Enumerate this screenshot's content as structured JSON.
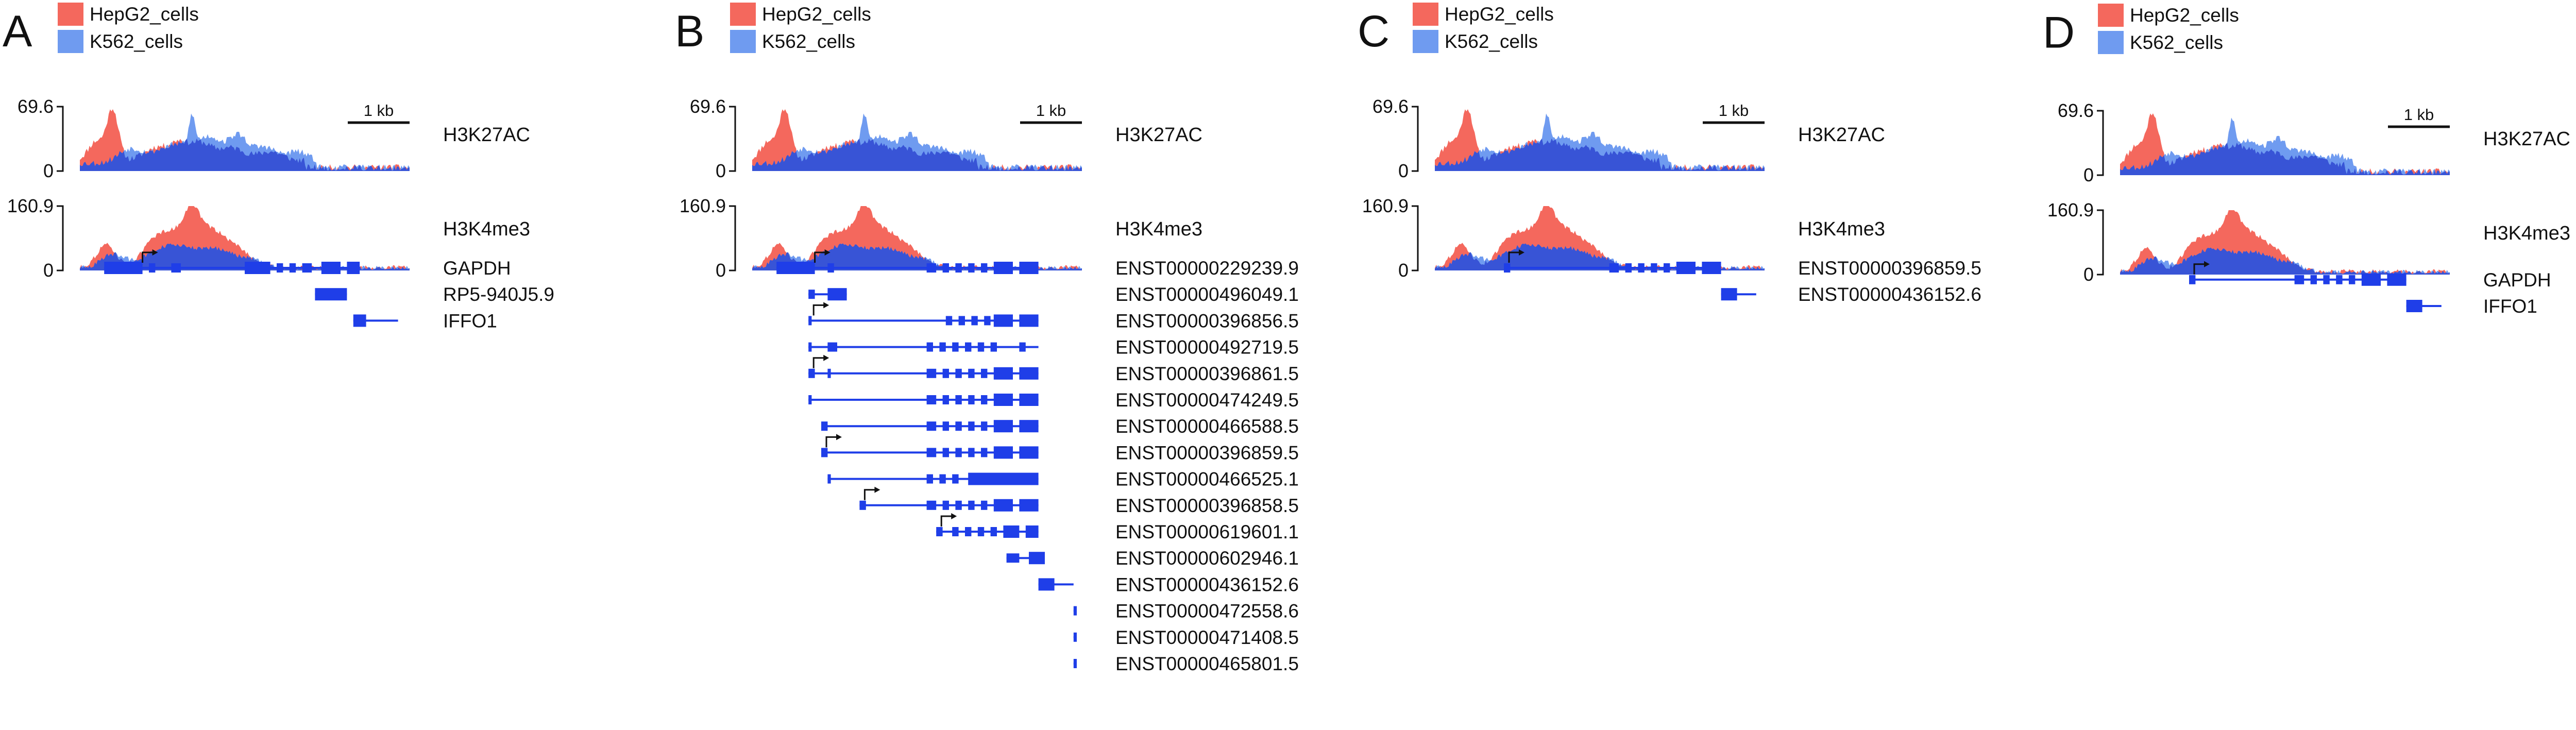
{
  "colors": {
    "hepg2": "#f4685d",
    "k562": "#6f9bf0",
    "overlap": "#3854d6",
    "gene": "#1f3ee8"
  },
  "legend": {
    "series": [
      {
        "name": "HepG2_cells",
        "color": "#f4685d"
      },
      {
        "name": "K562_cells",
        "color": "#6f9bf0"
      }
    ]
  },
  "scale_bar_label": "1 kb",
  "tracks": [
    {
      "name": "H3K27AC",
      "ymax": "69.6",
      "ymin": "0"
    },
    {
      "name": "H3K4me3",
      "ymax": "160.9",
      "ymin": "0"
    }
  ],
  "chart_data": [
    {
      "type": "area",
      "panel": "A",
      "legend": [
        "HepG2_cells",
        "K562_cells"
      ],
      "tracks": [
        "H3K27AC",
        "H3K4me3"
      ],
      "genes": [
        "GAPDH",
        "RP5-940J5.9",
        "IFFO1"
      ]
    },
    {
      "type": "area",
      "panel": "B",
      "legend": [
        "HepG2_cells",
        "K562_cells"
      ],
      "tracks": [
        "H3K27AC",
        "H3K4me3"
      ],
      "genes": [
        "ENST00000229239.9",
        "ENST00000496049.1",
        "ENST00000396856.5",
        "ENST00000492719.5",
        "ENST00000396861.5",
        "ENST00000474249.5",
        "ENST00000466588.5",
        "ENST00000396859.5",
        "ENST00000466525.1",
        "ENST00000396858.5",
        "ENST00000619601.1",
        "ENST00000602946.1",
        "ENST00000436152.6",
        "ENST00000472558.6",
        "ENST00000471408.5",
        "ENST00000465801.5"
      ]
    },
    {
      "type": "area",
      "panel": "C",
      "legend": [
        "HepG2_cells",
        "K562_cells"
      ],
      "tracks": [
        "H3K27AC",
        "H3K4me3"
      ],
      "genes": [
        "ENST00000396859.5",
        "ENST00000436152.6"
      ]
    },
    {
      "type": "area",
      "panel": "D",
      "legend": [
        "HepG2_cells",
        "K562_cells"
      ],
      "tracks": [
        "H3K27AC",
        "H3K4me3"
      ],
      "genes": [
        "GAPDH",
        "IFFO1"
      ]
    }
  ],
  "panels": [
    {
      "letter": "A",
      "genes": [
        {
          "label": "GAPDH",
          "tss": true,
          "line": [
            0.06,
            0.86
          ],
          "exons": [
            [
              0.06,
              0.18
            ],
            [
              0.2,
              0.22
            ],
            [
              0.27,
              0.3
            ],
            [
              0.5,
              0.58
            ],
            [
              0.6,
              0.62
            ],
            [
              0.64,
              0.66
            ],
            [
              0.68,
              0.71
            ],
            [
              0.74,
              0.8
            ],
            [
              0.82,
              0.86
            ]
          ]
        },
        {
          "label": "RP5-940J5.9",
          "tss": false,
          "line": [
            0.72,
            0.82
          ],
          "exons": [
            [
              0.72,
              0.82
            ]
          ]
        },
        {
          "label": "IFFO1",
          "tss": false,
          "line": [
            0.84,
            0.98
          ],
          "exons": [
            [
              0.84,
              0.88
            ]
          ]
        }
      ]
    },
    {
      "letter": "B",
      "genes": [
        {
          "label": "ENST00000229239.9",
          "tss": true,
          "line": [
            0.06,
            0.88
          ],
          "exons": [
            [
              0.06,
              0.18
            ],
            [
              0.22,
              0.24
            ],
            [
              0.53,
              0.56
            ],
            [
              0.58,
              0.6
            ],
            [
              0.62,
              0.64
            ],
            [
              0.66,
              0.68
            ],
            [
              0.7,
              0.72
            ],
            [
              0.74,
              0.8
            ],
            [
              0.82,
              0.88
            ]
          ]
        },
        {
          "label": "ENST00000496049.1",
          "tss": false,
          "line": [
            0.16,
            0.28
          ],
          "exons": [
            [
              0.16,
              0.18
            ],
            [
              0.22,
              0.28
            ]
          ]
        },
        {
          "label": "ENST00000396856.5",
          "tss": true,
          "line": [
            0.16,
            0.88
          ],
          "exons": [
            [
              0.16,
              0.17
            ],
            [
              0.59,
              0.61
            ],
            [
              0.63,
              0.65
            ],
            [
              0.67,
              0.69
            ],
            [
              0.71,
              0.73
            ],
            [
              0.74,
              0.8
            ],
            [
              0.82,
              0.88
            ]
          ]
        },
        {
          "label": "ENST00000492719.5",
          "tss": false,
          "line": [
            0.16,
            0.88
          ],
          "exons": [
            [
              0.16,
              0.17
            ],
            [
              0.22,
              0.25
            ],
            [
              0.53,
              0.55
            ],
            [
              0.57,
              0.59
            ],
            [
              0.61,
              0.63
            ],
            [
              0.65,
              0.67
            ],
            [
              0.69,
              0.71
            ],
            [
              0.73,
              0.75
            ],
            [
              0.82,
              0.84
            ]
          ]
        },
        {
          "label": "ENST00000396861.5",
          "tss": true,
          "line": [
            0.16,
            0.88
          ],
          "exons": [
            [
              0.16,
              0.18
            ],
            [
              0.22,
              0.23
            ],
            [
              0.53,
              0.56
            ],
            [
              0.58,
              0.6
            ],
            [
              0.62,
              0.64
            ],
            [
              0.66,
              0.68
            ],
            [
              0.7,
              0.72
            ],
            [
              0.74,
              0.8
            ],
            [
              0.82,
              0.88
            ]
          ]
        },
        {
          "label": "ENST00000474249.5",
          "tss": false,
          "line": [
            0.16,
            0.88
          ],
          "exons": [
            [
              0.16,
              0.17
            ],
            [
              0.53,
              0.56
            ],
            [
              0.58,
              0.6
            ],
            [
              0.62,
              0.64
            ],
            [
              0.66,
              0.68
            ],
            [
              0.7,
              0.72
            ],
            [
              0.74,
              0.8
            ],
            [
              0.82,
              0.88
            ]
          ]
        },
        {
          "label": "ENST00000466588.5",
          "tss": false,
          "line": [
            0.2,
            0.88
          ],
          "exons": [
            [
              0.2,
              0.22
            ],
            [
              0.53,
              0.56
            ],
            [
              0.58,
              0.6
            ],
            [
              0.62,
              0.64
            ],
            [
              0.66,
              0.68
            ],
            [
              0.7,
              0.72
            ],
            [
              0.74,
              0.8
            ],
            [
              0.82,
              0.88
            ]
          ]
        },
        {
          "label": "ENST00000396859.5",
          "tss": true,
          "line": [
            0.2,
            0.88
          ],
          "exons": [
            [
              0.2,
              0.22
            ],
            [
              0.53,
              0.56
            ],
            [
              0.58,
              0.6
            ],
            [
              0.62,
              0.64
            ],
            [
              0.66,
              0.68
            ],
            [
              0.7,
              0.72
            ],
            [
              0.74,
              0.8
            ],
            [
              0.82,
              0.88
            ]
          ]
        },
        {
          "label": "ENST00000466525.1",
          "tss": false,
          "line": [
            0.22,
            0.88
          ],
          "exons": [
            [
              0.22,
              0.23
            ],
            [
              0.53,
              0.55
            ],
            [
              0.57,
              0.59
            ],
            [
              0.61,
              0.63
            ],
            [
              0.66,
              0.88
            ]
          ]
        },
        {
          "label": "ENST00000396858.5",
          "tss": true,
          "line": [
            0.32,
            0.88
          ],
          "exons": [
            [
              0.32,
              0.34
            ],
            [
              0.53,
              0.56
            ],
            [
              0.58,
              0.6
            ],
            [
              0.62,
              0.64
            ],
            [
              0.66,
              0.68
            ],
            [
              0.7,
              0.72
            ],
            [
              0.74,
              0.8
            ],
            [
              0.82,
              0.88
            ]
          ]
        },
        {
          "label": "ENST00000619601.1",
          "tss": true,
          "line": [
            0.56,
            0.88
          ],
          "exons": [
            [
              0.56,
              0.58
            ],
            [
              0.61,
              0.63
            ],
            [
              0.65,
              0.67
            ],
            [
              0.69,
              0.71
            ],
            [
              0.73,
              0.75
            ],
            [
              0.77,
              0.82
            ],
            [
              0.84,
              0.88
            ]
          ]
        },
        {
          "label": "ENST00000602946.1",
          "tss": false,
          "line": [
            0.78,
            0.9
          ],
          "exons": [
            [
              0.78,
              0.82
            ],
            [
              0.85,
              0.9
            ]
          ]
        },
        {
          "label": "ENST00000436152.6",
          "tss": false,
          "line": [
            0.88,
            0.99
          ],
          "exons": [
            [
              0.88,
              0.93
            ]
          ]
        },
        {
          "label": "ENST00000472558.6",
          "tss": false,
          "line": [
            0.99,
            1.0
          ],
          "exons": [
            [
              0.99,
              1.0
            ]
          ]
        },
        {
          "label": "ENST00000471408.5",
          "tss": false,
          "line": [
            0.99,
            1.0
          ],
          "exons": [
            [
              0.99,
              1.0
            ]
          ]
        },
        {
          "label": "ENST00000465801.5",
          "tss": false,
          "line": [
            0.99,
            1.0
          ],
          "exons": [
            [
              0.99,
              1.0
            ]
          ]
        }
      ]
    },
    {
      "letter": "C",
      "genes": [
        {
          "label": "ENST00000396859.5",
          "tss": true,
          "line": [
            0.2,
            0.88
          ],
          "exons": [
            [
              0.2,
              0.22
            ],
            [
              0.53,
              0.56
            ],
            [
              0.58,
              0.6
            ],
            [
              0.62,
              0.64
            ],
            [
              0.66,
              0.68
            ],
            [
              0.7,
              0.72
            ],
            [
              0.74,
              0.8
            ],
            [
              0.82,
              0.88
            ]
          ]
        },
        {
          "label": "ENST00000436152.6",
          "tss": false,
          "line": [
            0.88,
            0.99
          ],
          "exons": [
            [
              0.88,
              0.93
            ]
          ]
        }
      ]
    },
    {
      "letter": "D",
      "genes": [
        {
          "label": "GAPDH",
          "tss": true,
          "line": [
            0.2,
            0.88
          ],
          "exons": [
            [
              0.2,
              0.22
            ],
            [
              0.53,
              0.56
            ],
            [
              0.58,
              0.6
            ],
            [
              0.62,
              0.64
            ],
            [
              0.66,
              0.68
            ],
            [
              0.7,
              0.72
            ],
            [
              0.74,
              0.8
            ],
            [
              0.82,
              0.88
            ]
          ]
        },
        {
          "label": "IFFO1",
          "tss": false,
          "line": [
            0.88,
            0.99
          ],
          "exons": [
            [
              0.88,
              0.93
            ]
          ]
        }
      ]
    }
  ]
}
